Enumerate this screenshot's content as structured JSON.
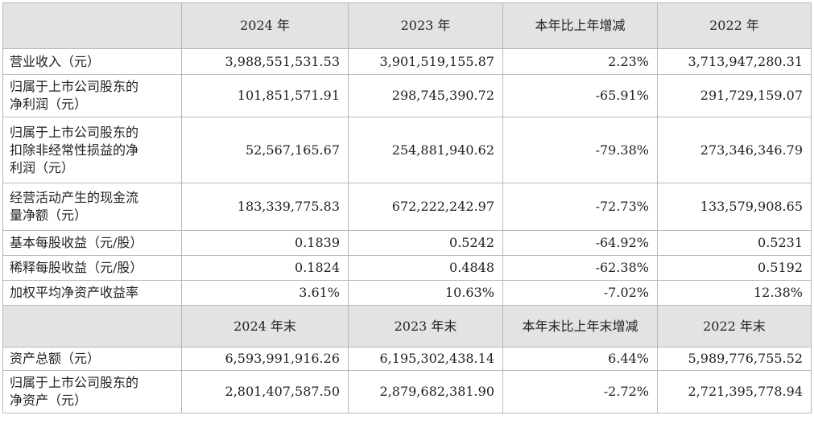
{
  "header1": [
    "2024 年",
    "2023 年",
    "本年比上年增减",
    "2022 年"
  ],
  "rows1": [
    {
      "label": [
        "营业收入（元）"
      ],
      "values": [
        "3,988,551,531.53",
        "3,901,519,155.87",
        "2.23%",
        "3,713,947,280.31"
      ]
    },
    {
      "label": [
        "归属于上市公司股东的",
        "净利润（元）"
      ],
      "values": [
        "101,851,571.91",
        "298,745,390.72",
        "-65.91%",
        "291,729,159.07"
      ]
    },
    {
      "label": [
        "归属于上市公司股东的",
        "扣除非经常性损益的净",
        "利润（元）"
      ],
      "values": [
        "52,567,165.67",
        "254,881,940.62",
        "-79.38%",
        "273,346,346.79"
      ]
    },
    {
      "label": [
        "经营活动产生的现金流",
        "量净额（元）"
      ],
      "values": [
        "183,339,775.83",
        "672,222,242.97",
        "-72.73%",
        "133,579,908.65"
      ]
    },
    {
      "label": [
        "基本每股收益（元/股）"
      ],
      "values": [
        "0.1839",
        "0.5242",
        "-64.92%",
        "0.5231"
      ]
    },
    {
      "label": [
        "稀释每股收益（元/股）"
      ],
      "values": [
        "0.1824",
        "0.4848",
        "-62.38%",
        "0.5192"
      ]
    },
    {
      "label": [
        "加权平均净资产收益率"
      ],
      "values": [
        "3.61%",
        "10.63%",
        "-7.02%",
        "12.38%"
      ]
    }
  ],
  "header2": [
    "2024 年末",
    "2023 年末",
    "本年末比上年末增减",
    "2022 年末"
  ],
  "rows2": [
    {
      "label": [
        "资产总额（元）"
      ],
      "values": [
        "6,593,991,916.26",
        "6,195,302,438.14",
        "6.44%",
        "5,989,776,755.52"
      ]
    },
    {
      "label": [
        "归属于上市公司股东的",
        "净资产（元）"
      ],
      "values": [
        "2,801,407,587.50",
        "2,879,682,381.90",
        "-2.72%",
        "2,721,395,778.94"
      ]
    }
  ]
}
